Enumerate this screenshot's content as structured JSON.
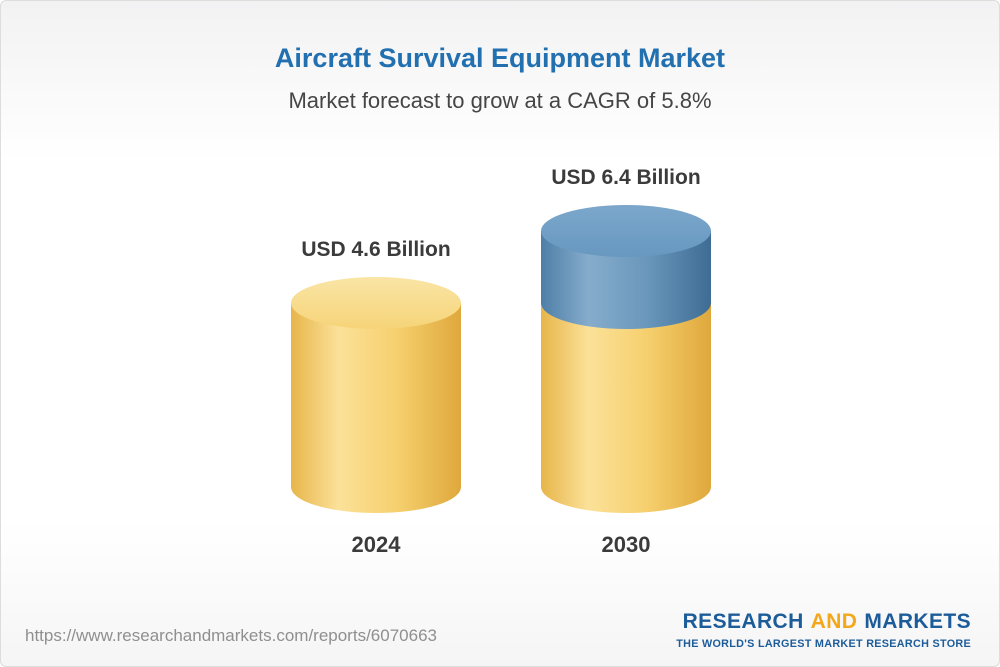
{
  "header": {
    "title": "Aircraft Survival Equipment Market",
    "subtitle": "Market forecast to grow at a CAGR of 5.8%"
  },
  "chart_data": {
    "type": "bar",
    "title": "Aircraft Survival Equipment Market",
    "subtitle": "Market forecast to grow at a CAGR of 5.8%",
    "unit": "USD Billion",
    "cagr": "5.8%",
    "categories": [
      "2024",
      "2030"
    ],
    "values": [
      4.6,
      6.4
    ],
    "ylim": [
      0,
      7
    ],
    "legend": "none",
    "grid": false,
    "bars": [
      {
        "category": "2024",
        "value": 4.6,
        "label": "USD 4.6 Billion",
        "segments": [
          {
            "value": 4.6,
            "color": "yellow"
          }
        ]
      },
      {
        "category": "2030",
        "value": 6.4,
        "label": "USD 6.4 Billion",
        "segments": [
          {
            "value": 4.6,
            "color": "yellow"
          },
          {
            "value": 1.8,
            "color": "blue"
          }
        ]
      }
    ]
  },
  "colors": {
    "title_blue": "#2270af",
    "logo_blue": "#1c5c99",
    "logo_orange": "#f3a71b",
    "yellow": {
      "edge": "#E7B54A",
      "light": "#FBE199",
      "main": "#F6D06E",
      "dark": "#DFA83C",
      "top": "#F6D478",
      "top_light": "#FAE5A6"
    },
    "blue": {
      "edge": "#4E7FA8",
      "light": "#86ACCB",
      "main": "#6A97BC",
      "dark": "#3E6C93",
      "top": "#6798C0",
      "top_light": "#7CA7CB"
    }
  },
  "footer": {
    "url": "https://www.researchandmarkets.com/reports/6070663",
    "logo": {
      "word1": "RESEARCH",
      "word2": "AND",
      "word3": "MARKETS",
      "tagline": "THE WORLD'S LARGEST MARKET RESEARCH STORE"
    }
  }
}
